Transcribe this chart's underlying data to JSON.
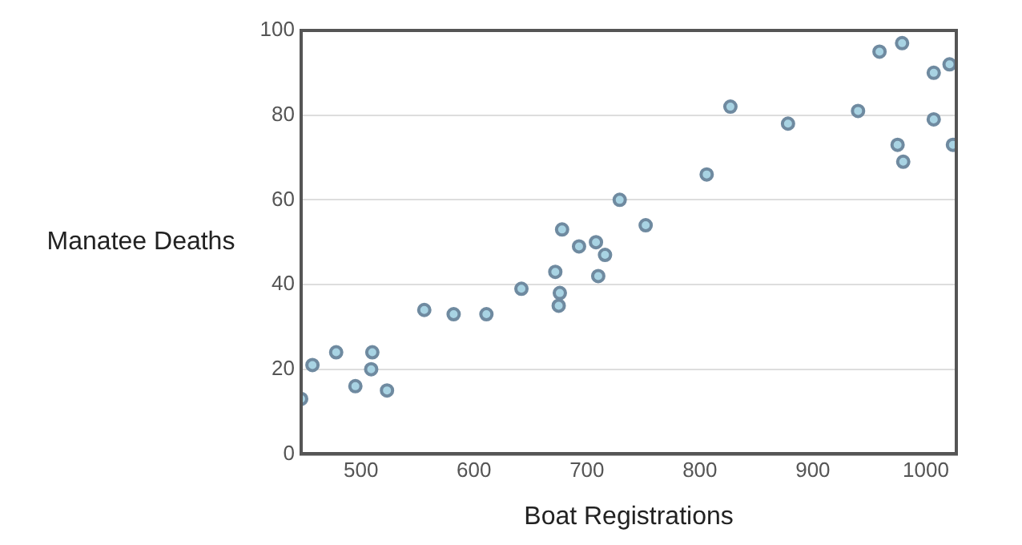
{
  "chart_data": {
    "type": "scatter",
    "xlabel": "Boat Registrations",
    "ylabel": "Manatee Deaths",
    "x": [
      447,
      457,
      478,
      495,
      509,
      510,
      523,
      556,
      582,
      611,
      642,
      672,
      675,
      676,
      678,
      693,
      708,
      710,
      716,
      729,
      752,
      806,
      827,
      878,
      940,
      959,
      975,
      979,
      980,
      1007,
      1007,
      1021,
      1024
    ],
    "series": [
      {
        "color": "#6f8aa0",
        "values": [
          13,
          21,
          24,
          16,
          20,
          24,
          15,
          34,
          33,
          33,
          39,
          43,
          35,
          38,
          53,
          49,
          50,
          42,
          47,
          60,
          54,
          66,
          82,
          78,
          81,
          95,
          73,
          97,
          69,
          90,
          79,
          92,
          73
        ]
      }
    ],
    "xlim": [
      447,
      1027
    ],
    "xticks": [
      500,
      600,
      700,
      800,
      900,
      1000
    ],
    "ylim": [
      0,
      100
    ],
    "yticks": [
      0,
      20,
      40,
      60,
      80,
      100
    ],
    "grid": "y",
    "legend": false,
    "marker": "circle"
  }
}
